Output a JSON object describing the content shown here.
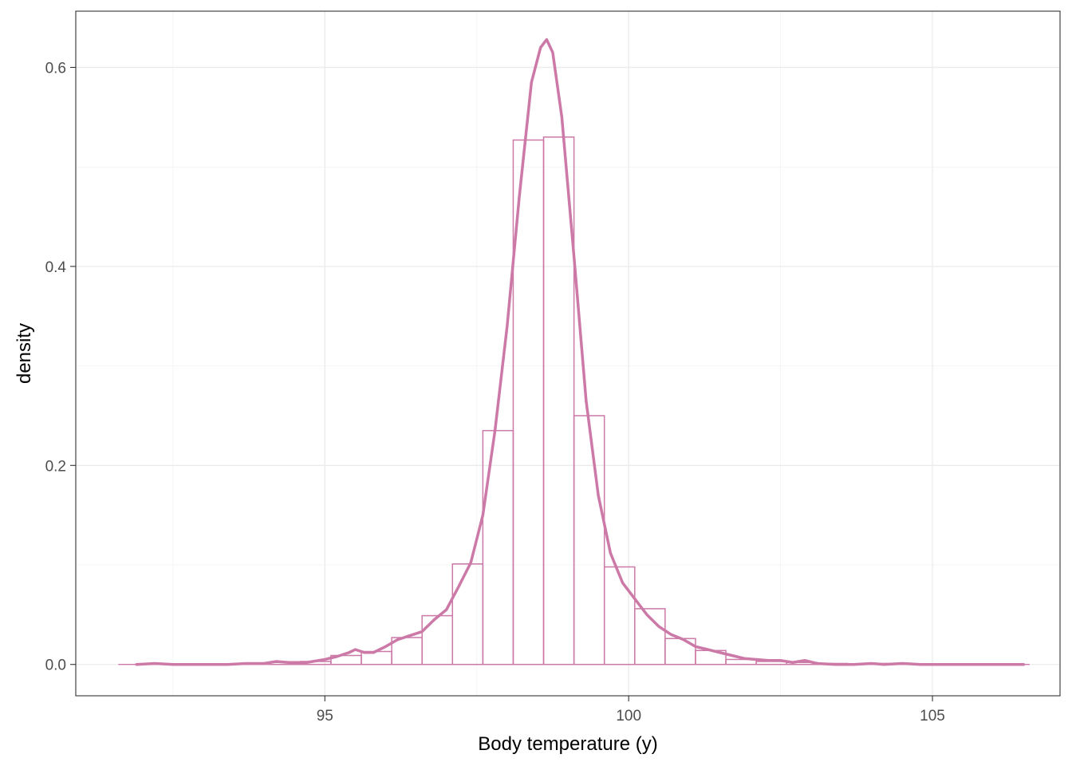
{
  "chart_data": {
    "type": "histogram",
    "xlabel": "Body temperature (y)",
    "ylabel": "density",
    "xlim": [
      90.9,
      107.1
    ],
    "ylim": [
      -0.0315,
      0.6565
    ],
    "x_ticks": [
      95,
      100,
      105
    ],
    "x_tick_labels": [
      "95",
      "100",
      "105"
    ],
    "y_ticks": [
      0.0,
      0.2,
      0.4,
      0.6
    ],
    "y_tick_labels": [
      "0.0",
      "0.2",
      "0.4",
      "0.6"
    ],
    "grid": true,
    "color": "#CC79A7",
    "histogram": {
      "bins": [
        {
          "x0": 91.6,
          "x1": 92.1,
          "density": 0.0
        },
        {
          "x0": 92.1,
          "x1": 92.6,
          "density": 0.0
        },
        {
          "x0": 92.6,
          "x1": 93.1,
          "density": 0.0
        },
        {
          "x0": 93.1,
          "x1": 93.6,
          "density": 0.0
        },
        {
          "x0": 93.6,
          "x1": 94.1,
          "density": 0.0
        },
        {
          "x0": 94.1,
          "x1": 94.6,
          "density": 0.002
        },
        {
          "x0": 94.6,
          "x1": 95.1,
          "density": 0.003
        },
        {
          "x0": 95.1,
          "x1": 95.6,
          "density": 0.009
        },
        {
          "x0": 95.6,
          "x1": 96.1,
          "density": 0.013
        },
        {
          "x0": 96.1,
          "x1": 96.6,
          "density": 0.027
        },
        {
          "x0": 96.6,
          "x1": 97.1,
          "density": 0.049
        },
        {
          "x0": 97.1,
          "x1": 97.6,
          "density": 0.101
        },
        {
          "x0": 97.6,
          "x1": 98.1,
          "density": 0.235
        },
        {
          "x0": 98.1,
          "x1": 98.6,
          "density": 0.527
        },
        {
          "x0": 98.6,
          "x1": 99.1,
          "density": 0.53
        },
        {
          "x0": 99.1,
          "x1": 99.6,
          "density": 0.25
        },
        {
          "x0": 99.6,
          "x1": 100.1,
          "density": 0.098
        },
        {
          "x0": 100.1,
          "x1": 100.6,
          "density": 0.056
        },
        {
          "x0": 100.6,
          "x1": 101.1,
          "density": 0.026
        },
        {
          "x0": 101.1,
          "x1": 101.6,
          "density": 0.014
        },
        {
          "x0": 101.6,
          "x1": 102.1,
          "density": 0.005
        },
        {
          "x0": 102.1,
          "x1": 102.6,
          "density": 0.003
        },
        {
          "x0": 102.6,
          "x1": 103.1,
          "density": 0.002
        },
        {
          "x0": 103.1,
          "x1": 103.6,
          "density": 0.001
        },
        {
          "x0": 103.6,
          "x1": 104.1,
          "density": 0.0
        },
        {
          "x0": 104.1,
          "x1": 104.6,
          "density": 0.001
        },
        {
          "x0": 104.6,
          "x1": 105.1,
          "density": 0.0
        },
        {
          "x0": 105.1,
          "x1": 105.6,
          "density": 0.0
        },
        {
          "x0": 105.6,
          "x1": 106.1,
          "density": 0.0
        },
        {
          "x0": 106.1,
          "x1": 106.6,
          "density": 0.0
        }
      ]
    },
    "density_curve": {
      "x": [
        91.9,
        92.2,
        92.5,
        92.8,
        93.1,
        93.4,
        93.7,
        94.0,
        94.2,
        94.4,
        94.7,
        95.0,
        95.2,
        95.4,
        95.5,
        95.65,
        95.8,
        96.0,
        96.2,
        96.4,
        96.6,
        96.8,
        97.0,
        97.2,
        97.4,
        97.6,
        97.8,
        98.0,
        98.2,
        98.4,
        98.55,
        98.65,
        98.75,
        98.9,
        99.1,
        99.3,
        99.5,
        99.7,
        99.9,
        100.1,
        100.3,
        100.5,
        100.7,
        100.9,
        101.1,
        101.3,
        101.5,
        101.7,
        101.9,
        102.1,
        102.3,
        102.5,
        102.7,
        102.9,
        103.1,
        103.4,
        103.7,
        104.0,
        104.2,
        104.5,
        104.8,
        105.1,
        105.5,
        106.0,
        106.5
      ],
      "y": [
        0.0,
        0.001,
        0.0,
        0.0,
        0.0,
        0.0,
        0.001,
        0.001,
        0.003,
        0.002,
        0.002,
        0.005,
        0.008,
        0.012,
        0.015,
        0.012,
        0.012,
        0.018,
        0.025,
        0.029,
        0.033,
        0.045,
        0.055,
        0.078,
        0.102,
        0.15,
        0.235,
        0.34,
        0.47,
        0.585,
        0.62,
        0.628,
        0.615,
        0.55,
        0.41,
        0.265,
        0.17,
        0.112,
        0.082,
        0.066,
        0.05,
        0.038,
        0.03,
        0.025,
        0.018,
        0.015,
        0.012,
        0.009,
        0.006,
        0.005,
        0.004,
        0.004,
        0.002,
        0.004,
        0.001,
        0.0,
        0.0,
        0.001,
        0.0,
        0.001,
        0.0,
        0.0,
        0.0,
        0.0,
        0.0
      ]
    },
    "baseline_range": [
      91.6,
      106.6
    ]
  }
}
